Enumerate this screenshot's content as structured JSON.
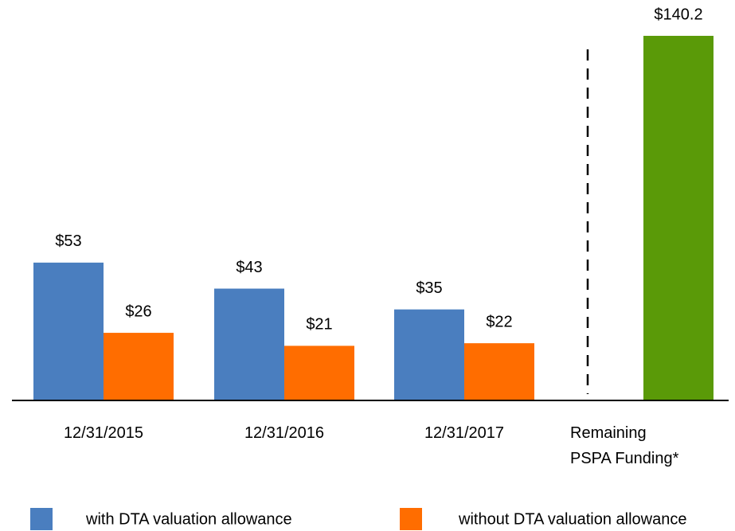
{
  "chart_data": {
    "type": "bar",
    "categories": [
      "12/31/2015",
      "12/31/2016",
      "12/31/2017",
      "Remaining PSPA Funding*"
    ],
    "series": [
      {
        "name": "with DTA valuation allowance",
        "color": "#4a7ebf",
        "values": [
          53,
          43,
          35,
          null
        ],
        "value_labels": [
          "$53",
          "$43",
          "$35",
          null
        ]
      },
      {
        "name": "without DTA valuation allowance",
        "color": "#ff6d00",
        "values": [
          26,
          21,
          22,
          null
        ],
        "value_labels": [
          "$26",
          "$21",
          "$22",
          null
        ]
      },
      {
        "color": "#5a9a08",
        "values": [
          null,
          null,
          null,
          140.2
        ],
        "value_labels": [
          null,
          null,
          null,
          "$140.2"
        ]
      }
    ],
    "ylim": [
      0,
      150
    ]
  }
}
